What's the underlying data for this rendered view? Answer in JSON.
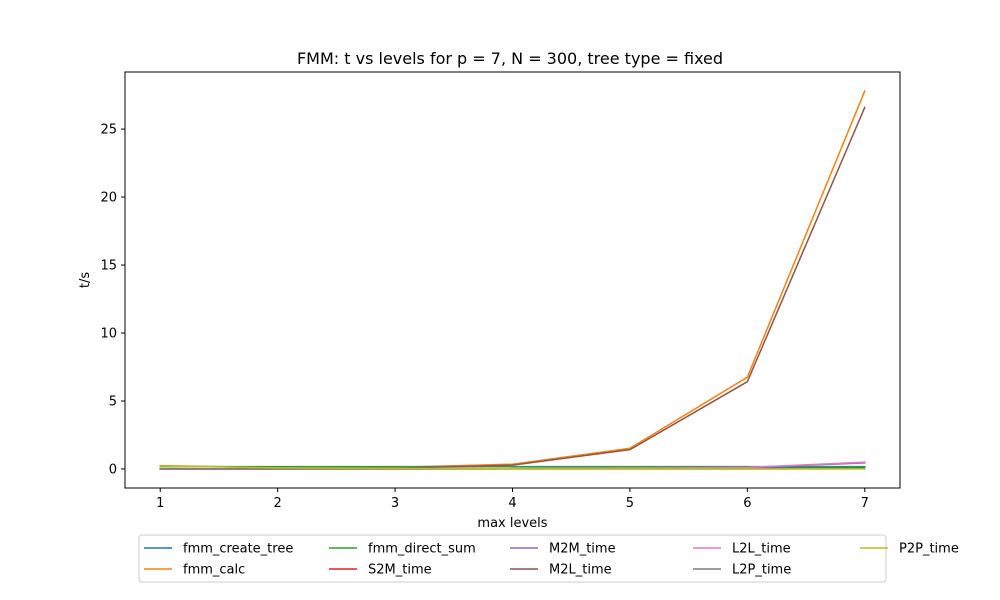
{
  "chart_data": {
    "type": "line",
    "title": "FMM: t vs levels for p = 7, N = 300, tree type = fixed",
    "xlabel": "max levels",
    "ylabel": "t/s",
    "x": [
      1,
      2,
      3,
      4,
      5,
      6,
      7
    ],
    "xlim": [
      0.7,
      7.3
    ],
    "ylim": [
      -1.4,
      29.2
    ],
    "xticks": [
      1,
      2,
      3,
      4,
      5,
      6,
      7
    ],
    "yticks": [
      0,
      5,
      10,
      15,
      20,
      25
    ],
    "grid": false,
    "legend_position": "bottom-center",
    "series": [
      {
        "name": "fmm_create_tree",
        "color": "#1f77b4",
        "values": [
          0.02,
          0.02,
          0.02,
          0.03,
          0.05,
          0.08,
          0.12
        ]
      },
      {
        "name": "fmm_calc",
        "color": "#ff7f0e",
        "values": [
          0.25,
          0.1,
          0.12,
          0.35,
          1.52,
          6.75,
          27.8
        ]
      },
      {
        "name": "fmm_direct_sum",
        "color": "#2ca02c",
        "values": [
          0.17,
          0.17,
          0.17,
          0.17,
          0.17,
          0.17,
          0.17
        ]
      },
      {
        "name": "S2M_time",
        "color": "#d62728",
        "values": [
          0.01,
          0.01,
          0.01,
          0.01,
          0.01,
          0.01,
          0.02
        ]
      },
      {
        "name": "M2M_time",
        "color": "#9467bd",
        "values": [
          0.0,
          0.0,
          0.01,
          0.02,
          0.04,
          0.1,
          0.45
        ]
      },
      {
        "name": "M2L_time",
        "color": "#8c564b",
        "values": [
          0.0,
          0.0,
          0.05,
          0.28,
          1.42,
          6.42,
          26.6
        ]
      },
      {
        "name": "L2L_time",
        "color": "#e377c2",
        "values": [
          0.0,
          0.0,
          0.01,
          0.02,
          0.05,
          0.12,
          0.5
        ]
      },
      {
        "name": "L2P_time",
        "color": "#7f7f7f",
        "values": [
          0.01,
          0.01,
          0.01,
          0.01,
          0.01,
          0.01,
          0.02
        ]
      },
      {
        "name": "P2P_time",
        "color": "#bcbd22",
        "values": [
          0.22,
          0.08,
          0.04,
          0.02,
          0.01,
          0.01,
          0.01
        ]
      }
    ]
  }
}
